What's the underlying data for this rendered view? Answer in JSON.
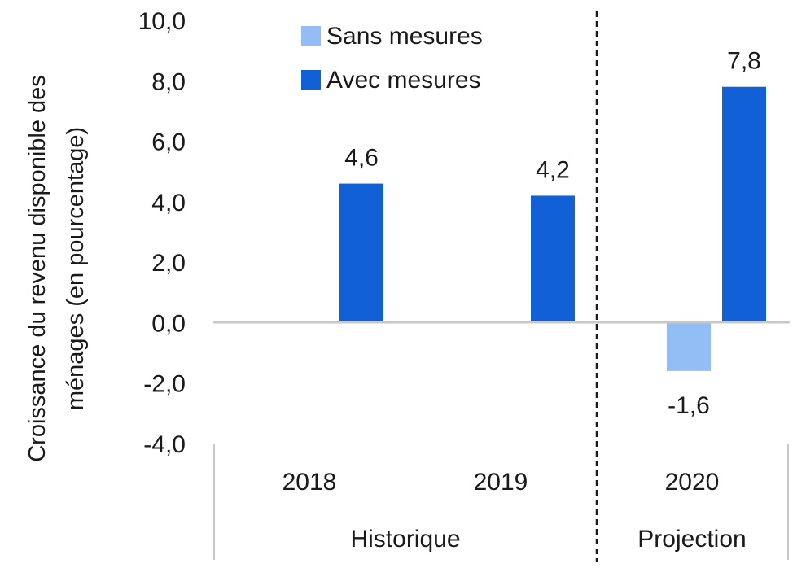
{
  "chart_data": {
    "type": "bar",
    "ylabel_line1": "Croissance du revenu disponible des",
    "ylabel_line2": "ménages (en pourcentage)",
    "ylim": [
      -4,
      10
    ],
    "yticks": [
      "10,0",
      "8,0",
      "6,0",
      "4,0",
      "2,0",
      "0,0",
      "-2,0",
      "-4,0"
    ],
    "categories": [
      "2018",
      "2019",
      "2020"
    ],
    "groups": [
      "Historique",
      "Projection"
    ],
    "series": [
      {
        "name": "Sans mesures",
        "color": "#93bdf5",
        "values": [
          null,
          null,
          -1.6
        ],
        "labels": [
          "",
          "",
          "-1,6"
        ]
      },
      {
        "name": "Avec mesures",
        "color": "#1160d6",
        "values": [
          4.6,
          4.2,
          7.8
        ],
        "labels": [
          "4,6",
          "4,2",
          "7,8"
        ]
      }
    ],
    "legend_position": "top-left",
    "grid": false
  }
}
